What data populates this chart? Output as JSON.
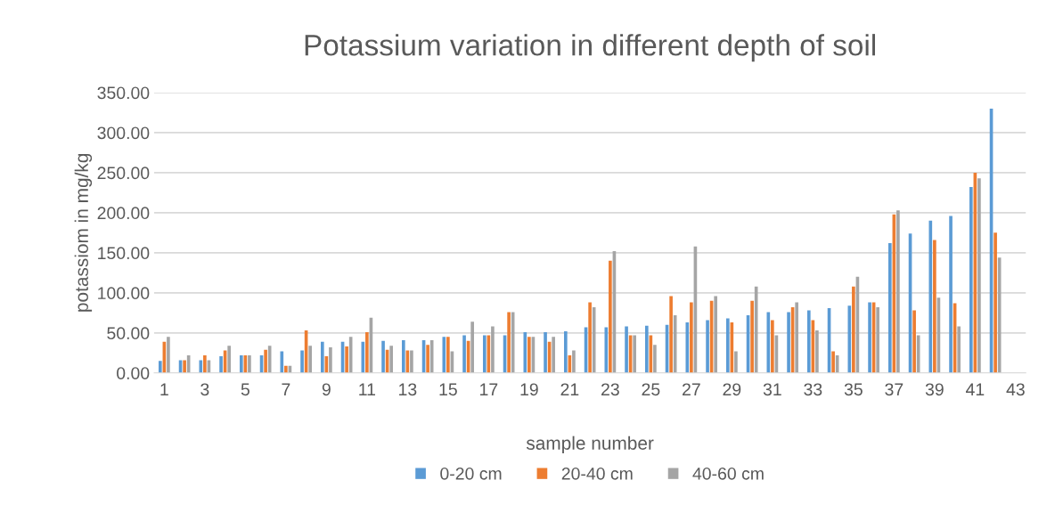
{
  "chart_data": {
    "type": "bar",
    "title": "Potassium variation in different depth of soil",
    "xlabel": "sample number",
    "ylabel": "potassiom in mg/kg",
    "categories": [
      "1",
      null,
      "3",
      null,
      "5",
      null,
      "7",
      null,
      "9",
      null,
      "11",
      null,
      "13",
      null,
      "15",
      null,
      "17",
      null,
      "19",
      null,
      "21",
      null,
      "23",
      null,
      "25",
      null,
      "27",
      null,
      "29",
      null,
      "31",
      null,
      "33",
      null,
      "35",
      null,
      "37",
      null,
      "39",
      null,
      "41",
      null,
      "43"
    ],
    "series": [
      {
        "name": "0-20 cm",
        "color": "#5b9bd5",
        "values": [
          15,
          16,
          16,
          21,
          22,
          22,
          27,
          28,
          39,
          39,
          39,
          40,
          41,
          41,
          45,
          47,
          47,
          47,
          51,
          51,
          52,
          57,
          57,
          58,
          59,
          60,
          63,
          66,
          68,
          72,
          76,
          76,
          78,
          81,
          84,
          88,
          162,
          174,
          190,
          196,
          232,
          330,
          null
        ]
      },
      {
        "name": "20-40 cm",
        "color": "#ed7d31",
        "values": [
          39,
          16,
          22,
          28,
          22,
          29,
          9,
          53,
          21,
          33,
          51,
          29,
          28,
          35,
          45,
          40,
          47,
          76,
          45,
          39,
          22,
          88,
          140,
          47,
          47,
          96,
          88,
          90,
          63,
          90,
          66,
          82,
          66,
          27,
          108,
          88,
          198,
          78,
          166,
          87,
          250,
          175,
          null
        ]
      },
      {
        "name": "40-60 cm",
        "color": "#a5a5a5",
        "values": [
          45,
          22,
          16,
          34,
          22,
          34,
          9,
          34,
          32,
          45,
          69,
          34,
          28,
          41,
          27,
          64,
          58,
          76,
          45,
          45,
          28,
          82,
          152,
          47,
          35,
          72,
          158,
          96,
          27,
          108,
          47,
          88,
          53,
          22,
          120,
          82,
          203,
          47,
          94,
          58,
          243,
          144,
          null
        ]
      }
    ],
    "ylim": [
      0,
      350
    ],
    "yticks": [
      {
        "value": 0,
        "label": "0.00"
      },
      {
        "value": 50,
        "label": "50.00"
      },
      {
        "value": 100,
        "label": "100.00"
      },
      {
        "value": 150,
        "label": "150.00"
      },
      {
        "value": 200,
        "label": "200.00"
      },
      {
        "value": 250,
        "label": "250.00"
      },
      {
        "value": 300,
        "label": "300.00"
      },
      {
        "value": 350,
        "label": "350.00"
      }
    ],
    "grid": "y",
    "legend": "bottom"
  }
}
